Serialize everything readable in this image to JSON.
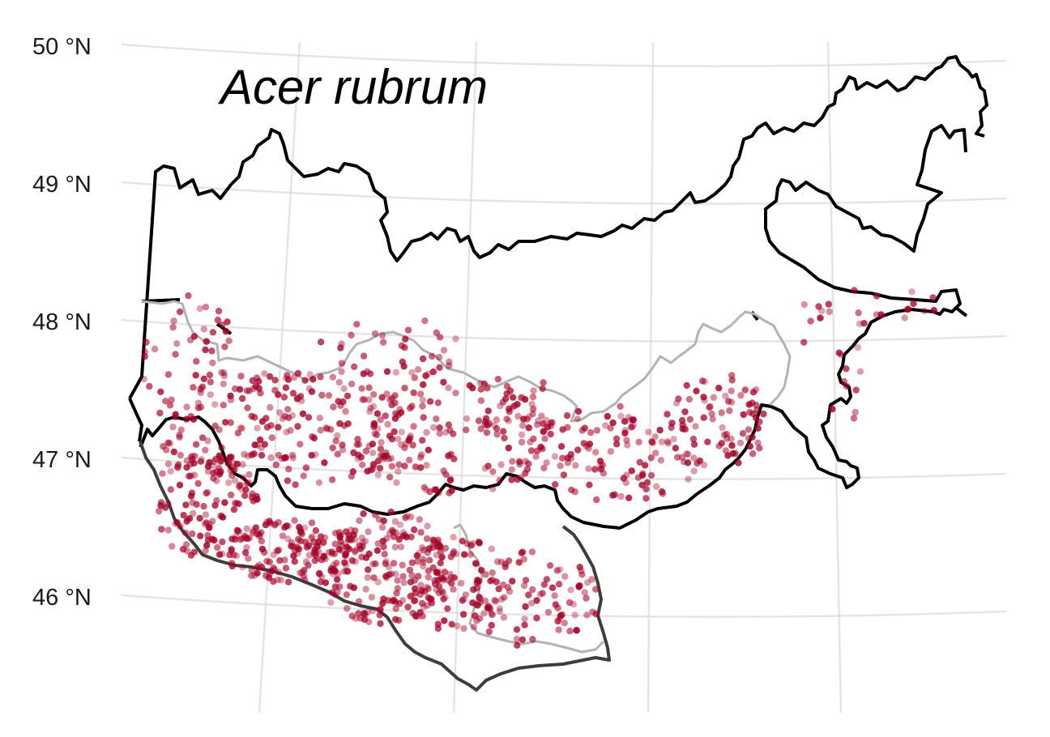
{
  "map": {
    "title": "Acer rubrum",
    "lat_labels": [
      "50 °N",
      "49 °N",
      "48 °N",
      "47 °N",
      "46 °N"
    ],
    "colors": {
      "points": "#a50026",
      "border_main": "#000000",
      "border_south": "#3d3d3d",
      "border_inner": "#b3b3b3",
      "grid": "#d9d9d9"
    },
    "occurrence_marker": "occurrence-point"
  }
}
